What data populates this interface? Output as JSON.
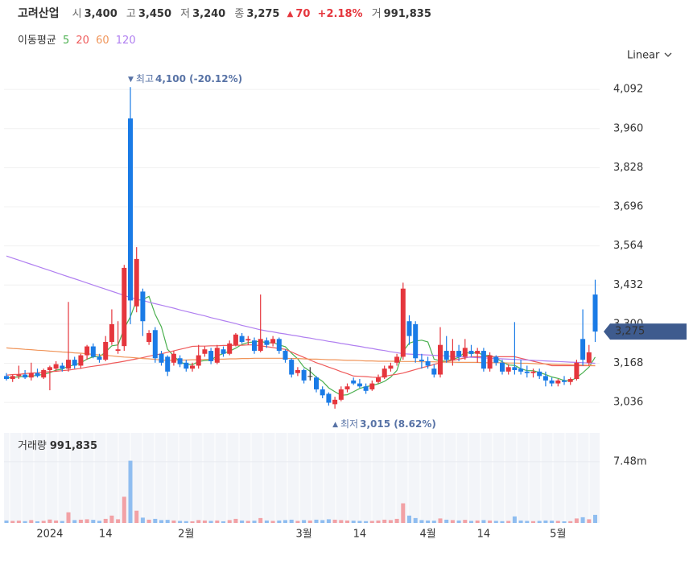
{
  "header": {
    "name": "고려산업",
    "items": [
      {
        "label": "시",
        "value": "3,400"
      },
      {
        "label": "고",
        "value": "3,450"
      },
      {
        "label": "저",
        "value": "3,240"
      },
      {
        "label": "종",
        "value": "3,275"
      }
    ],
    "change_arrow": "▲",
    "change": "70",
    "change_pct": "+2.18%",
    "volume_label": "거",
    "volume": "991,835"
  },
  "chart_data": {
    "type": "candlestick",
    "title": "고려산업",
    "scale_label": "Linear",
    "legend_title": "이동평균",
    "up_color": "#e5363d",
    "down_color": "#1a7be6",
    "doji_color": "#333333",
    "categories": [
      null,
      null,
      null,
      null,
      null,
      null,
      null,
      "2024",
      null,
      null,
      null,
      null,
      null,
      null,
      null,
      null,
      "14",
      null,
      null,
      null,
      null,
      null,
      null,
      null,
      null,
      null,
      null,
      null,
      null,
      "2월",
      null,
      null,
      null,
      null,
      null,
      null,
      null,
      null,
      null,
      null,
      null,
      null,
      null,
      null,
      null,
      null,
      null,
      null,
      "3월",
      null,
      null,
      null,
      null,
      null,
      null,
      null,
      null,
      "14",
      null,
      null,
      null,
      null,
      null,
      null,
      null,
      null,
      null,
      null,
      "4월",
      null,
      null,
      null,
      null,
      null,
      null,
      null,
      null,
      "14",
      null,
      null,
      null,
      null,
      null,
      null,
      null,
      null,
      null,
      null,
      null,
      "5월",
      null,
      null,
      null,
      null,
      null,
      null
    ],
    "open": [
      3125,
      3115,
      3125,
      3130,
      3120,
      3135,
      3120,
      3145,
      3150,
      3160,
      3150,
      3180,
      3160,
      3195,
      3225,
      3190,
      3180,
      3240,
      3210,
      3226,
      3994,
      3360,
      3410,
      3240,
      3280,
      3200,
      3190,
      3170,
      3185,
      3170,
      3150,
      3160,
      3200,
      3210,
      3170,
      3215,
      3200,
      3230,
      3260,
      3245,
      3245,
      3210,
      3245,
      3235,
      3250,
      3210,
      3180,
      3135,
      3145,
      3125,
      3120,
      3080,
      3065,
      3030,
      3045,
      3080,
      3110,
      3100,
      3090,
      3080,
      3105,
      3120,
      3150,
      3170,
      3190,
      3310,
      3300,
      3180,
      3175,
      3150,
      3130,
      3210,
      3180,
      3210,
      3190,
      3210,
      3200,
      3210,
      3150,
      3190,
      3170,
      3140,
      3155,
      3150,
      3140,
      3135,
      3140,
      3125,
      3110,
      3100,
      3110,
      3105,
      3115,
      3250,
      3170,
      3400
    ],
    "high": [
      3135,
      3130,
      3160,
      3145,
      3170,
      3150,
      3150,
      3160,
      3175,
      3170,
      3375,
      3190,
      3200,
      3230,
      3235,
      3200,
      3260,
      3350,
      3310,
      3500,
      4100,
      3560,
      3420,
      3280,
      3290,
      3210,
      3195,
      3210,
      3195,
      3180,
      3170,
      3230,
      3225,
      3220,
      3230,
      3225,
      3245,
      3270,
      3270,
      3260,
      3255,
      3400,
      3255,
      3260,
      3255,
      3215,
      3185,
      3155,
      3150,
      3155,
      3125,
      3090,
      3070,
      3055,
      3090,
      3100,
      3120,
      3115,
      3100,
      3110,
      3130,
      3160,
      3170,
      3200,
      3440,
      3330,
      3310,
      3200,
      3190,
      3165,
      3290,
      3260,
      3250,
      3230,
      3250,
      3230,
      3220,
      3220,
      3205,
      3195,
      3180,
      3165,
      3307,
      3180,
      3160,
      3150,
      3150,
      3140,
      3120,
      3115,
      3125,
      3120,
      3180,
      3350,
      3230,
      3450
    ],
    "low": [
      3110,
      3105,
      3115,
      3115,
      3110,
      3120,
      3115,
      3077,
      3140,
      3140,
      3140,
      3150,
      3150,
      3180,
      3185,
      3170,
      3175,
      3230,
      3200,
      3210,
      3300,
      3340,
      3260,
      3230,
      3170,
      3160,
      3125,
      3160,
      3155,
      3140,
      3140,
      3150,
      3190,
      3165,
      3165,
      3190,
      3195,
      3225,
      3235,
      3230,
      3200,
      3205,
      3220,
      3225,
      3200,
      3170,
      3120,
      3125,
      3100,
      3110,
      3070,
      3050,
      3025,
      3015,
      3040,
      3070,
      3095,
      3085,
      3065,
      3075,
      3100,
      3115,
      3140,
      3160,
      3180,
      3230,
      3170,
      3150,
      3150,
      3120,
      3120,
      3170,
      3160,
      3175,
      3180,
      3190,
      3170,
      3140,
      3140,
      3160,
      3130,
      3130,
      3130,
      3130,
      3120,
      3120,
      3115,
      3090,
      3090,
      3090,
      3095,
      3095,
      3110,
      3160,
      3160,
      3240
    ],
    "close": [
      3115,
      3125,
      3130,
      3120,
      3135,
      3125,
      3145,
      3155,
      3165,
      3150,
      3180,
      3160,
      3195,
      3225,
      3190,
      3180,
      3240,
      3300,
      3215,
      3490,
      3380,
      3520,
      3310,
      3270,
      3185,
      3170,
      3140,
      3200,
      3165,
      3150,
      3160,
      3195,
      3215,
      3175,
      3220,
      3200,
      3235,
      3265,
      3240,
      3250,
      3210,
      3250,
      3230,
      3250,
      3210,
      3180,
      3130,
      3145,
      3110,
      3125,
      3080,
      3060,
      3035,
      3045,
      3080,
      3090,
      3100,
      3090,
      3075,
      3100,
      3120,
      3150,
      3160,
      3190,
      3420,
      3260,
      3185,
      3175,
      3160,
      3130,
      3230,
      3180,
      3210,
      3190,
      3220,
      3200,
      3210,
      3150,
      3195,
      3170,
      3140,
      3155,
      3145,
      3140,
      3135,
      3140,
      3125,
      3110,
      3100,
      3110,
      3105,
      3115,
      3170,
      3180,
      3205,
      3275
    ],
    "last_price_label": "3,275",
    "ylim": [
      2955,
      4163
    ],
    "yticks": [
      {
        "value": 4092,
        "label": "4,092"
      },
      {
        "value": 3960,
        "label": "3,960"
      },
      {
        "value": 3828,
        "label": "3,828"
      },
      {
        "value": 3696,
        "label": "3,696"
      },
      {
        "value": 3564,
        "label": "3,564"
      },
      {
        "value": 3432,
        "label": "3,432"
      },
      {
        "value": 3300,
        "label": "3,300"
      },
      {
        "value": 3168,
        "label": "3,168"
      },
      {
        "value": 3036,
        "label": "3,036"
      }
    ],
    "grid": true,
    "annotations": [
      {
        "arrow": "▼",
        "label": "최고",
        "text": "4,100 (-20.12%)",
        "index": 20,
        "at": "high"
      },
      {
        "arrow": "▲",
        "label": "최저",
        "text": "3,015 (8.62%)",
        "index": 53,
        "at": "low"
      }
    ],
    "series": [
      {
        "name": "5",
        "color": "#4cb050",
        "values": [
          3118,
          3120,
          3122,
          3124,
          3125,
          3127,
          3131,
          3136,
          3145,
          3148,
          3159,
          3162,
          3170,
          3182,
          3190,
          3190,
          3206,
          3227,
          3230,
          3285,
          3325,
          3381,
          3383,
          3394,
          3333,
          3291,
          3215,
          3193,
          3172,
          3165,
          3163,
          3174,
          3177,
          3179,
          3193,
          3201,
          3209,
          3219,
          3232,
          3238,
          3240,
          3243,
          3236,
          3238,
          3230,
          3224,
          3202,
          3183,
          3155,
          3141,
          3121,
          3107,
          3085,
          3072,
          3060,
          3062,
          3072,
          3083,
          3089,
          3093,
          3099,
          3107,
          3121,
          3144,
          3208,
          3236,
          3243,
          3246,
          3240,
          3182,
          3176,
          3175,
          3182,
          3188,
          3206,
          3200,
          3206,
          3194,
          3195,
          3185,
          3173,
          3162,
          3161,
          3150,
          3143,
          3143,
          3137,
          3130,
          3122,
          3117,
          3110,
          3108,
          3120,
          3136,
          3155,
          3189
        ]
      },
      {
        "name": "20",
        "color": "#ef5a5a",
        "values": [
          3128,
          3130,
          3131,
          3133,
          3135,
          3136,
          3138,
          3140,
          3141,
          3143,
          3145,
          3148,
          3151,
          3155,
          3158,
          3161,
          3164,
          3168,
          3171,
          3175,
          3179,
          3183,
          3187,
          3192,
          3196,
          3200,
          3205,
          3210,
          3215,
          3220,
          3225,
          3226,
          3226,
          3227,
          3227,
          3228,
          3228,
          3229,
          3229,
          3230,
          3230,
          3227,
          3224,
          3221,
          3218,
          3215,
          3206,
          3197,
          3188,
          3179,
          3170,
          3163,
          3155,
          3148,
          3140,
          3133,
          3125,
          3124,
          3123,
          3121,
          3120,
          3124,
          3128,
          3131,
          3135,
          3141,
          3147,
          3153,
          3158,
          3164,
          3170,
          3174,
          3178,
          3182,
          3186,
          3190,
          3190,
          3190,
          3190,
          3190,
          3190,
          3190,
          3190,
          3185,
          3180,
          3175,
          3170,
          3165,
          3160,
          3160,
          3160,
          3160,
          3160,
          3160,
          3160,
          3160
        ]
      },
      {
        "name": "60",
        "color": "#f0955a",
        "values": [
          3220,
          3218,
          3217,
          3215,
          3214,
          3212,
          3211,
          3209,
          3208,
          3206,
          3205,
          3203,
          3202,
          3200,
          3198,
          3196,
          3195,
          3193,
          3191,
          3189,
          3188,
          3186,
          3184,
          3183,
          3181,
          3179,
          3178,
          3178,
          3179,
          3179,
          3180,
          3180,
          3181,
          3181,
          3182,
          3182,
          3183,
          3183,
          3184,
          3184,
          3185,
          3185,
          3185,
          3185,
          3185,
          3185,
          3184,
          3184,
          3183,
          3182,
          3182,
          3181,
          3180,
          3180,
          3179,
          3178,
          3178,
          3177,
          3176,
          3176,
          3175,
          3175,
          3175,
          3175,
          3174,
          3174,
          3174,
          3173,
          3173,
          3173,
          3172,
          3172,
          3172,
          3171,
          3171,
          3171,
          3171,
          3170,
          3170,
          3170,
          3170,
          3169,
          3169,
          3168,
          3168,
          3167,
          3166,
          3166,
          3165,
          3164,
          3164,
          3163,
          3162,
          3162,
          3161,
          3160
        ]
      },
      {
        "name": "120",
        "color": "#b07ff0",
        "values": [
          3530,
          3523,
          3516,
          3509,
          3502,
          3495,
          3488,
          3481,
          3474,
          3467,
          3460,
          3453,
          3446,
          3439,
          3432,
          3425,
          3418,
          3411,
          3404,
          3397,
          3390,
          3385,
          3380,
          3374,
          3369,
          3364,
          3359,
          3354,
          3348,
          3343,
          3338,
          3333,
          3328,
          3322,
          3317,
          3312,
          3307,
          3302,
          3296,
          3291,
          3286,
          3281,
          3277,
          3274,
          3270,
          3267,
          3263,
          3260,
          3256,
          3253,
          3249,
          3246,
          3242,
          3239,
          3235,
          3232,
          3228,
          3225,
          3221,
          3218,
          3214,
          3211,
          3207,
          3204,
          3200,
          3199,
          3198,
          3197,
          3196,
          3195,
          3194,
          3193,
          3191,
          3190,
          3189,
          3188,
          3187,
          3186,
          3185,
          3184,
          3183,
          3182,
          3181,
          3180,
          3179,
          3178,
          3177,
          3176,
          3175,
          3174,
          3173,
          3172,
          3171,
          3170,
          3169,
          3168
        ]
      }
    ],
    "volume": {
      "label": "거래량",
      "last_label": "991,835",
      "up_color": "#f2a1a5",
      "down_color": "#8fbdf0",
      "ylim": [
        0,
        11000000
      ],
      "yticks": [
        {
          "value": 7480000,
          "label": "7.48m"
        }
      ],
      "values": [
        300000,
        250000,
        280000,
        220000,
        350000,
        200000,
        260000,
        420000,
        300000,
        240000,
        1300000,
        350000,
        400000,
        450000,
        380000,
        260000,
        500000,
        900000,
        450000,
        3200000,
        7600000,
        1500000,
        650000,
        400000,
        500000,
        350000,
        380000,
        300000,
        250000,
        220000,
        200000,
        350000,
        300000,
        250000,
        300000,
        200000,
        350000,
        500000,
        300000,
        250000,
        280000,
        600000,
        300000,
        250000,
        300000,
        350000,
        400000,
        250000,
        350000,
        300000,
        400000,
        350000,
        450000,
        400000,
        350000,
        300000,
        280000,
        250000,
        220000,
        250000,
        300000,
        400000,
        350000,
        500000,
        2400000,
        900000,
        600000,
        350000,
        300000,
        280000,
        550000,
        400000,
        350000,
        300000,
        380000,
        250000,
        300000,
        350000,
        300000,
        250000,
        220000,
        250000,
        800000,
        300000,
        250000,
        220000,
        250000,
        300000,
        280000,
        250000,
        200000,
        220000,
        550000,
        700000,
        450000,
        991835
      ]
    }
  }
}
